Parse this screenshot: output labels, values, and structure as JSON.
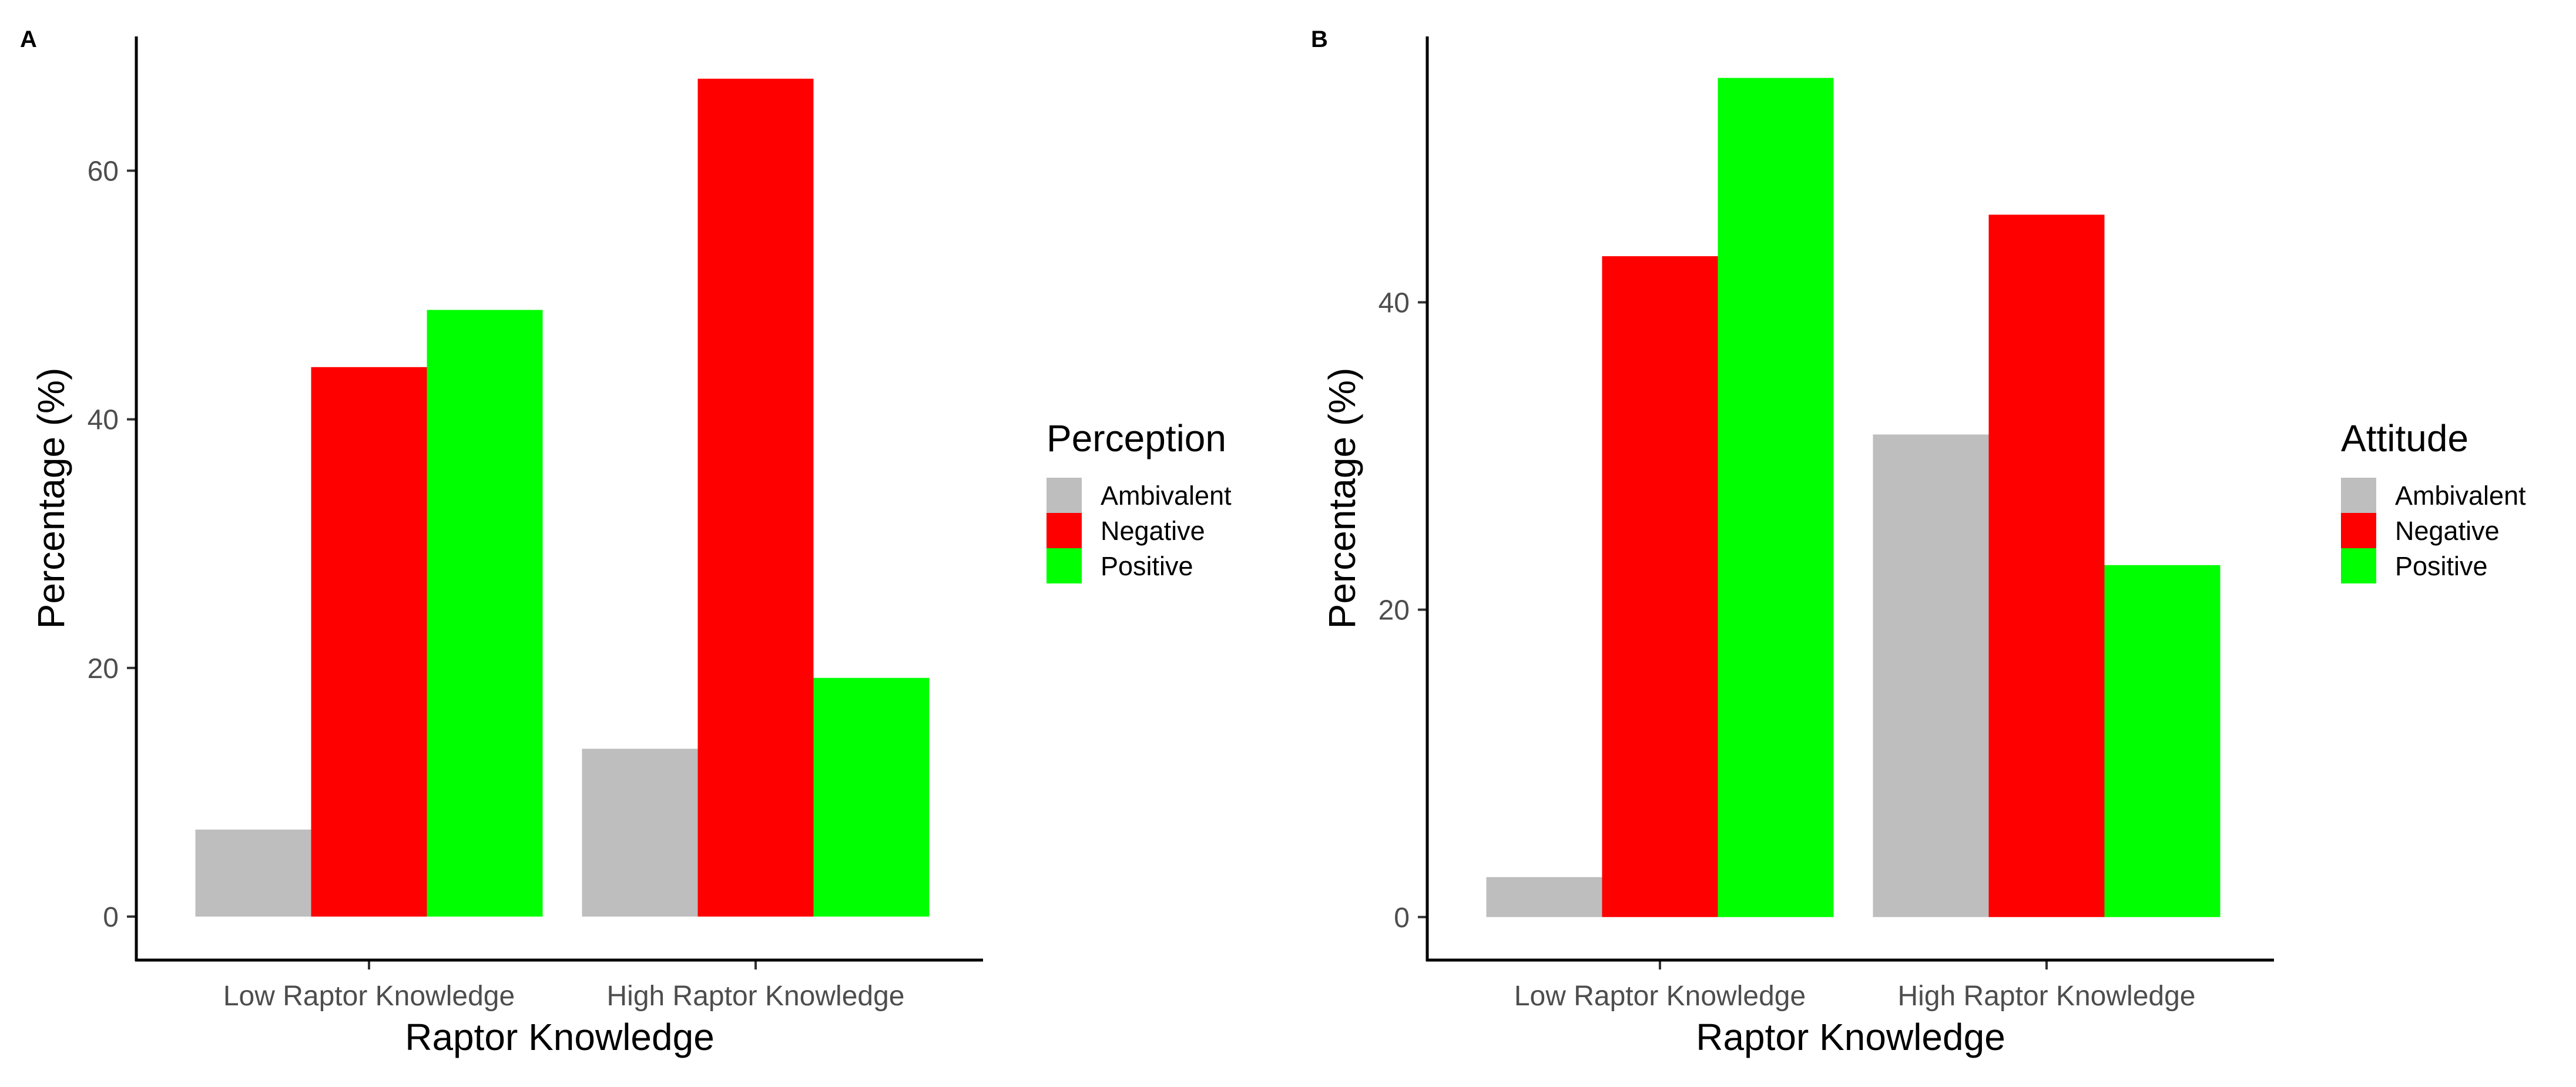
{
  "chart_data": [
    {
      "panel_label": "A",
      "type": "bar",
      "categories": [
        "Low Raptor Knowledge",
        "High Raptor Knowledge"
      ],
      "series": [
        {
          "name": "Ambivalent",
          "values": [
            7.0,
            13.5
          ],
          "color": "#bebebe"
        },
        {
          "name": "Negative",
          "values": [
            44.2,
            67.4
          ],
          "color": "#ff0000"
        },
        {
          "name": "Positive",
          "values": [
            48.8,
            19.2
          ],
          "color": "#00ff00"
        }
      ],
      "xlabel": "Raptor Knowledge",
      "ylabel": "Percentage (%)",
      "ylim": [
        -3.5,
        70.8
      ],
      "yticks": [
        0,
        20,
        40,
        60
      ],
      "legend_title": "Perception",
      "legend_position": "right",
      "grid": false
    },
    {
      "panel_label": "B",
      "type": "bar",
      "categories": [
        "Low Raptor Knowledge",
        "High Raptor Knowledge"
      ],
      "series": [
        {
          "name": "Ambivalent",
          "values": [
            2.6,
            31.4
          ],
          "color": "#bebebe"
        },
        {
          "name": "Negative",
          "values": [
            43.0,
            45.7
          ],
          "color": "#ff0000"
        },
        {
          "name": "Positive",
          "values": [
            54.6,
            22.9
          ],
          "color": "#00ff00"
        }
      ],
      "xlabel": "Raptor Knowledge",
      "ylabel": "Percentage (%)",
      "ylim": [
        -2.8,
        57.3
      ],
      "yticks": [
        0,
        20,
        40
      ],
      "legend_title": "Attitude",
      "legend_position": "right",
      "grid": false
    }
  ]
}
